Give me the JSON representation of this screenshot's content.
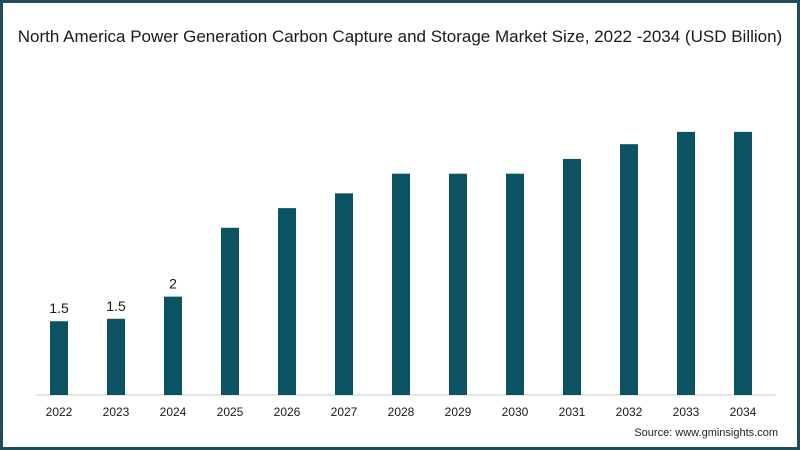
{
  "chart_data": {
    "type": "bar",
    "title": "North America Power Generation Carbon Capture and Storage Market Size, 2022 -2034 (USD Billion)",
    "categories": [
      "2022",
      "2023",
      "2024",
      "2025",
      "2026",
      "2027",
      "2028",
      "2029",
      "2030",
      "2031",
      "2032",
      "2033",
      "2034"
    ],
    "values": [
      1.5,
      1.55,
      2.0,
      3.4,
      3.8,
      4.1,
      4.5,
      4.5,
      4.5,
      4.8,
      5.1,
      5.35,
      5.35
    ],
    "data_labels": [
      "1.5",
      "1.5",
      "2",
      "",
      "",
      "",
      "",
      "",
      "",
      "",
      "",
      "",
      ""
    ],
    "xlabel": "",
    "ylabel": "",
    "ylim": [
      0,
      6.1
    ],
    "grid": false,
    "legend": "none",
    "bar_color": "#0b5262"
  },
  "source": "Source: www.gminsights.com",
  "colors": {
    "frame": "#1f4e5a",
    "bar": "#0b5262",
    "text": "#1a1a1a"
  }
}
